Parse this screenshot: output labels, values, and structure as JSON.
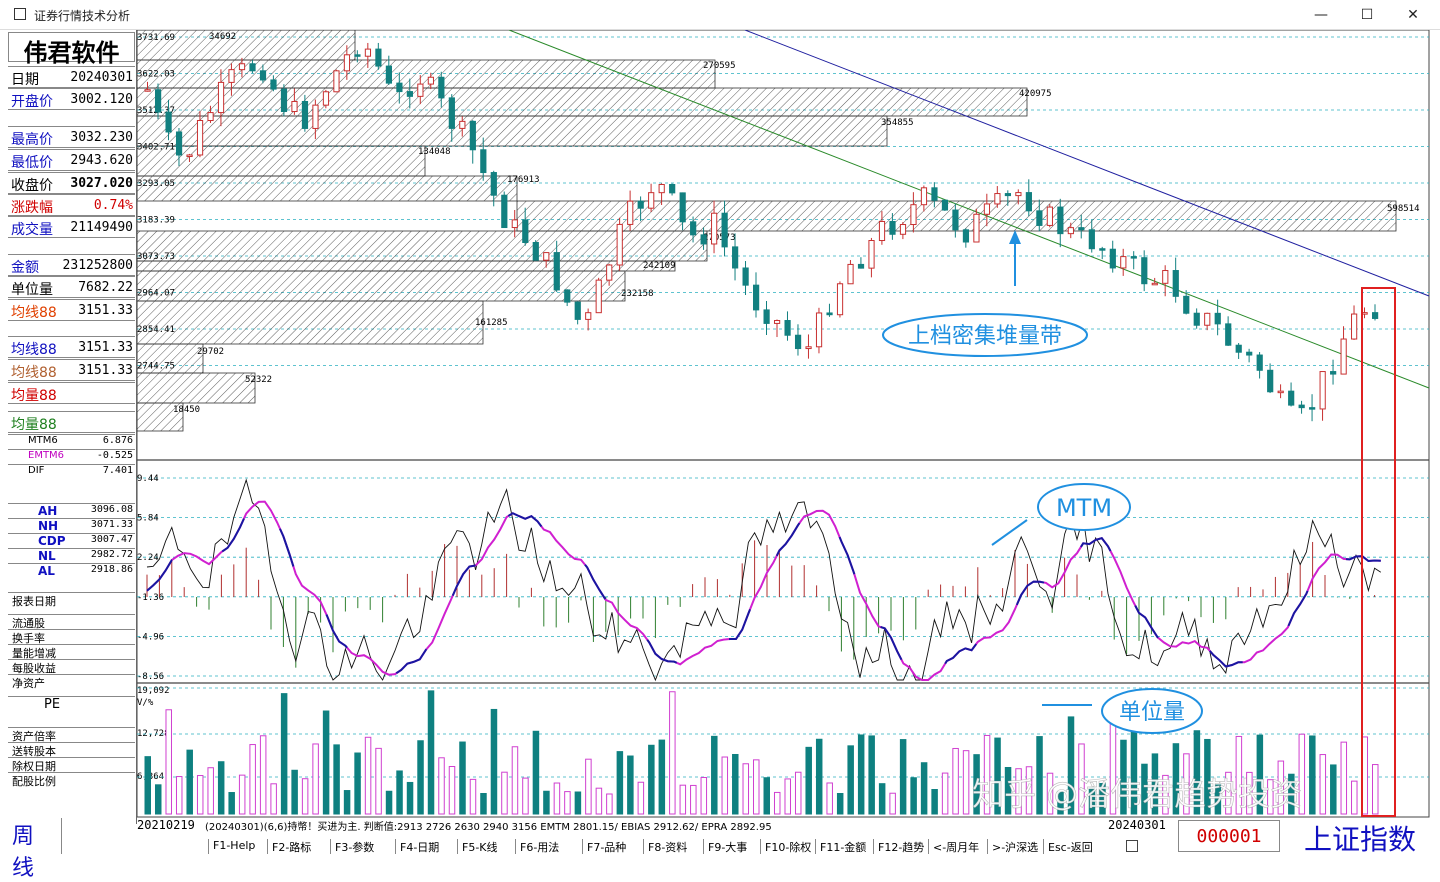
{
  "window": {
    "title": "证券行情技术分析",
    "min": "—",
    "max": "☐",
    "close": "✕"
  },
  "brand": "伟君软件",
  "info": [
    {
      "label": "日期",
      "value": "20240301",
      "lc": "#000"
    },
    {
      "label": "开盘价",
      "value": "3002.120",
      "lc": "#1010c0"
    },
    {
      "label": "最高价",
      "value": "3032.230",
      "lc": "#1010c0"
    },
    {
      "label": "最低价",
      "value": "2943.620",
      "lc": "#1010c0"
    },
    {
      "label": "收盘价",
      "value": "3027.020",
      "lc": "#000"
    },
    {
      "label": "涨跌幅",
      "value": "0.74%",
      "lc": "#d00000"
    },
    {
      "label": "成交量",
      "value": "21149490",
      "lc": "#1010c0"
    },
    {
      "label": "金额",
      "value": "231252800",
      "lc": "#1010c0"
    },
    {
      "label": "单位量",
      "value": "7682.22",
      "lc": "#000"
    },
    {
      "label": "均线88",
      "value": "3151.33",
      "lc": "#e04000"
    },
    {
      "label": "均线88",
      "value": "3151.33",
      "lc": "#1010c0"
    },
    {
      "label": "均线88",
      "value": "3151.33",
      "lc": "#b06030"
    },
    {
      "label": "均量88",
      "value": "",
      "lc": "#d00000"
    },
    {
      "label": "均量88",
      "value": "",
      "lc": "#208020"
    }
  ],
  "indicators": [
    {
      "label": "MTM6",
      "value": "6.876",
      "lc": "#000"
    },
    {
      "label": "EMTM6",
      "value": "-0.525",
      "lc": "#c000c0"
    },
    {
      "label": "DIF",
      "value": "7.401",
      "lc": "#000"
    },
    {
      "label": "AH",
      "value": "3096.08",
      "lc": "#1010c0"
    },
    {
      "label": "NH",
      "value": "3071.33",
      "lc": "#1010c0"
    },
    {
      "label": "CDP",
      "value": "3007.47",
      "lc": "#1010c0"
    },
    {
      "label": "NL",
      "value": "2982.72",
      "lc": "#1010c0"
    },
    {
      "label": "AL",
      "value": "2918.86",
      "lc": "#1010c0"
    }
  ],
  "fundamentals": [
    "报表日期",
    "流通股",
    "换手率",
    "量能增减",
    "每股收益",
    "净资产",
    "PE",
    "资产倍率",
    "送转股本",
    "除权日期",
    "配股比例"
  ],
  "period": "周 线",
  "price_axis": [
    "3731.69",
    "3622.03",
    "3512.37",
    "3402.71",
    "3293.05",
    "3183.39",
    "3073.73",
    "2964.07",
    "2854.41",
    "2744.75"
  ],
  "volume_profile": [
    "34692",
    "270595",
    "420975",
    "354855",
    "134048",
    "176913",
    "598514",
    "270573",
    "242109",
    "232158",
    "161285",
    "29702",
    "52322",
    "18450"
  ],
  "mtm_axis": [
    "9.44",
    "5.84",
    "2.24",
    "-1.36",
    "-4.96",
    "-8.56"
  ],
  "vol_axis": [
    "19,092",
    "V/%",
    "12,728",
    "6,364"
  ],
  "annotations": {
    "band": "上档密集堆量带",
    "mtm": "MTM",
    "unit": "单位量",
    "watermark": "知乎 @潘伟君趋势投资"
  },
  "status": {
    "start": "20210219",
    "formula": "(20240301)(6,6)持幣！买进为主.  判断值:2913  2726  2630  2940  3156 EMTM 2801.15/ EBIAS 2912.62/ EPRA 2892.95",
    "end": "20240301",
    "code": "000001",
    "name": "上证指数"
  },
  "fkeys": [
    "F1-Help",
    "F2-路标",
    "F3-参数",
    "F4-日期",
    "F5-K线",
    "F6-用法",
    "F7-品种",
    "F8-资料",
    "F9-大事",
    "F10-除权",
    "F11-金额",
    "F12-趋势",
    "<-周月年",
    ">-沪深选",
    "Esc-返回"
  ],
  "colors": {
    "up": "#c83030",
    "down": "#128080",
    "mtm": "#1818a0",
    "emtm": "#d020d0",
    "grid": "#2bb0c0",
    "vol_up": "#d040d0",
    "vol_down": "#0e8080"
  }
}
